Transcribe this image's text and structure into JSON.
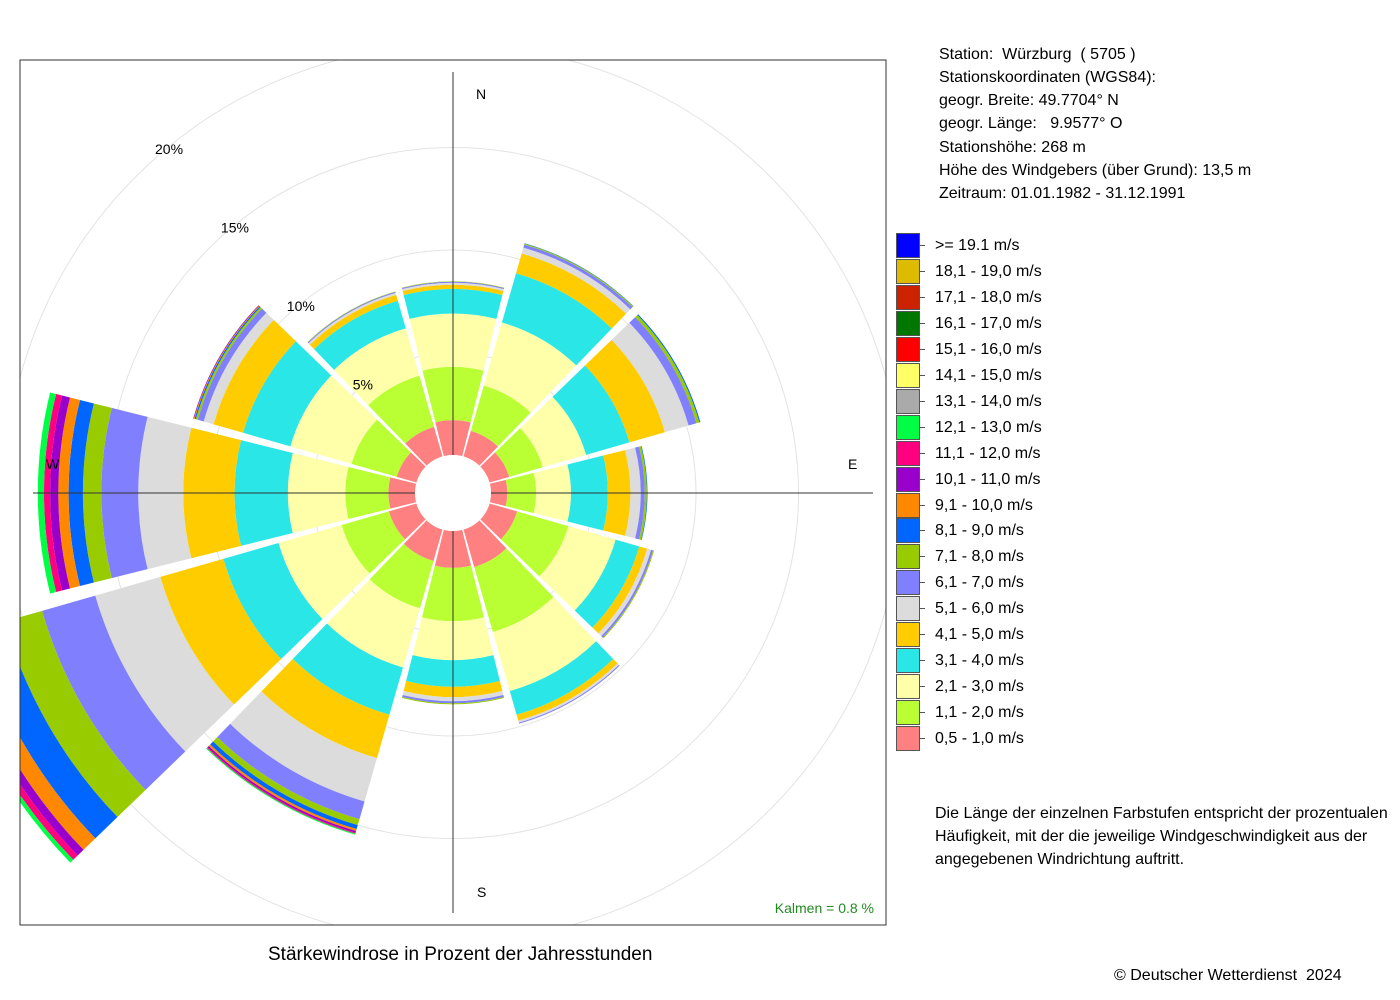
{
  "station_info": {
    "lines": [
      "Station:  Würzburg  ( 5705 )",
      "Stationskoordinaten (WGS84):",
      "geogr. Breite: 49.7704° N",
      "geogr. Länge:   9.9577° O",
      "Stationshöhe: 268 m",
      "Höhe des Windgebers (über Grund): 13,5 m",
      "Zeitraum: 01.01.1982 - 31.12.1991"
    ]
  },
  "description": {
    "lines": [
      "Die Länge der einzelnen Farbstufen entspricht der prozentualen",
      "Häufigkeit, mit der die jeweilige Windgeschwindigkeit aus der",
      "angegebenen Windrichtung auftritt."
    ]
  },
  "title": "Stärkewindrose in Prozent der Jahresstunden",
  "copyright": "© Deutscher Wetterdienst  2024",
  "kalmen": "Kalmen  =  0.8 %",
  "chart_data": {
    "type": "polar-stacked-bar",
    "title": "Stärkewindrose in Prozent der Jahresstunden",
    "radial_ticks": [
      "5%",
      "10%",
      "15%",
      "20%"
    ],
    "radial_tick_values": [
      5,
      10,
      15,
      20
    ],
    "radial_max": 21,
    "calm_percent": 0.8,
    "directions": [
      "N",
      "E",
      "S",
      "W"
    ],
    "sector_angles_deg": [
      0,
      30,
      60,
      90,
      120,
      150,
      180,
      210,
      240,
      270,
      300,
      330
    ],
    "speed_classes": [
      "0,5 - 1,0 m/s",
      "1,1 - 2,0 m/s",
      "2,1 - 3,0 m/s",
      "3,1 - 4,0 m/s",
      "4,1 - 5,0 m/s",
      "5,1 - 6,0 m/s",
      "6,1 - 7,0 m/s",
      "7,1 - 8,0 m/s",
      "8,1 - 9,0 m/s",
      "9,1 - 10,0 m/s",
      "10,1 - 11,0 m/s",
      "11,1 - 12,0 m/s",
      "12,1 - 13,0 m/s",
      "13,1 - 14,0 m/s",
      "14,1 - 15,0 m/s",
      "15,1 - 16,0 m/s",
      "16,1 - 17,0 m/s",
      "17,1 - 18,0 m/s",
      "18,1 - 19,0 m/s",
      ">= 19.1 m/s"
    ],
    "class_colors": [
      "#ff8080",
      "#b9ff33",
      "#ffffaa",
      "#2be6e6",
      "#ffcc00",
      "#dcdcdc",
      "#8080ff",
      "#99cc00",
      "#0066ff",
      "#ff8800",
      "#9900cc",
      "#ff0080",
      "#00ff44",
      "#aaaaaa",
      "#ffff66",
      "#ff0000",
      "#007700",
      "#cc2200",
      "#ddbb00",
      "#0000ff"
    ],
    "sectors": [
      {
        "angle": 0,
        "values": [
          1.7,
          2.6,
          2.6,
          1.2,
          0.2,
          0.1,
          0.05,
          0.02
        ]
      },
      {
        "angle": 30,
        "values": [
          1.3,
          2.3,
          3.2,
          2.5,
          1.0,
          0.3,
          0.15,
          0.05,
          0.02
        ]
      },
      {
        "angle": 60,
        "values": [
          1.0,
          1.7,
          2.2,
          2.2,
          1.8,
          1.2,
          0.4,
          0.15,
          0.05
        ]
      },
      {
        "angle": 90,
        "values": [
          0.8,
          1.4,
          1.7,
          1.8,
          1.1,
          0.5,
          0.2,
          0.1,
          0.03
        ]
      },
      {
        "angle": 120,
        "values": [
          1.4,
          2.6,
          2.4,
          1.2,
          0.4,
          0.2,
          0.1,
          0.05
        ]
      },
      {
        "angle": 150,
        "values": [
          1.9,
          3.3,
          3.0,
          1.2,
          0.3,
          0.1,
          0.05
        ]
      },
      {
        "angle": 180,
        "values": [
          1.8,
          2.6,
          1.9,
          1.3,
          0.5,
          0.2,
          0.1,
          0.05
        ]
      },
      {
        "angle": 210,
        "values": [
          1.6,
          2.4,
          3.0,
          2.4,
          2.2,
          2.2,
          0.9,
          0.3,
          0.2,
          0.1,
          0.08,
          0.05,
          0.05
        ]
      },
      {
        "angle": 240,
        "values": [
          1.4,
          2.4,
          3.2,
          2.8,
          3.2,
          3.3,
          2.7,
          1.9,
          1.5,
          0.8,
          0.4,
          0.3,
          0.2
        ]
      },
      {
        "angle": 270,
        "values": [
          1.3,
          2.1,
          2.8,
          2.6,
          2.5,
          2.2,
          1.8,
          0.9,
          0.7,
          0.5,
          0.4,
          0.3,
          0.3
        ]
      },
      {
        "angle": 300,
        "values": [
          1.0,
          2.3,
          3.1,
          2.4,
          1.5,
          0.5,
          0.3,
          0.1,
          0.06,
          0.04,
          0.03
        ]
      },
      {
        "angle": 330,
        "values": [
          1.5,
          2.6,
          2.4,
          1.4,
          0.3,
          0.1,
          0.05,
          0.02
        ]
      }
    ]
  },
  "legend": {
    "items": [
      {
        "label": ">= 19.1 m/s",
        "color": "#0000ff"
      },
      {
        "label": "18,1 - 19,0 m/s",
        "color": "#ddbb00"
      },
      {
        "label": "17,1 - 18,0 m/s",
        "color": "#cc2200"
      },
      {
        "label": "16,1 - 17,0 m/s",
        "color": "#007700"
      },
      {
        "label": "15,1 - 16,0 m/s",
        "color": "#ff0000"
      },
      {
        "label": "14,1 - 15,0 m/s",
        "color": "#ffff66"
      },
      {
        "label": "13,1 - 14,0 m/s",
        "color": "#aaaaaa"
      },
      {
        "label": "12,1 - 13,0 m/s",
        "color": "#00ff44"
      },
      {
        "label": "11,1 - 12,0 m/s",
        "color": "#ff0080"
      },
      {
        "label": "10,1 - 11,0 m/s",
        "color": "#9900cc"
      },
      {
        "label": "9,1 - 10,0 m/s",
        "color": "#ff8800"
      },
      {
        "label": "8,1 - 9,0 m/s",
        "color": "#0066ff"
      },
      {
        "label": "7,1 - 8,0 m/s",
        "color": "#99cc00"
      },
      {
        "label": "6,1 - 7,0 m/s",
        "color": "#8080ff"
      },
      {
        "label": "5,1 - 6,0 m/s",
        "color": "#dcdcdc"
      },
      {
        "label": "4,1 - 5,0 m/s",
        "color": "#ffcc00"
      },
      {
        "label": "3,1 - 4,0 m/s",
        "color": "#2be6e6"
      },
      {
        "label": "2,1 - 3,0 m/s",
        "color": "#ffffaa"
      },
      {
        "label": "1,1 - 2,0 m/s",
        "color": "#b9ff33"
      },
      {
        "label": "0,5 - 1,0 m/s",
        "color": "#ff8080"
      }
    ]
  }
}
